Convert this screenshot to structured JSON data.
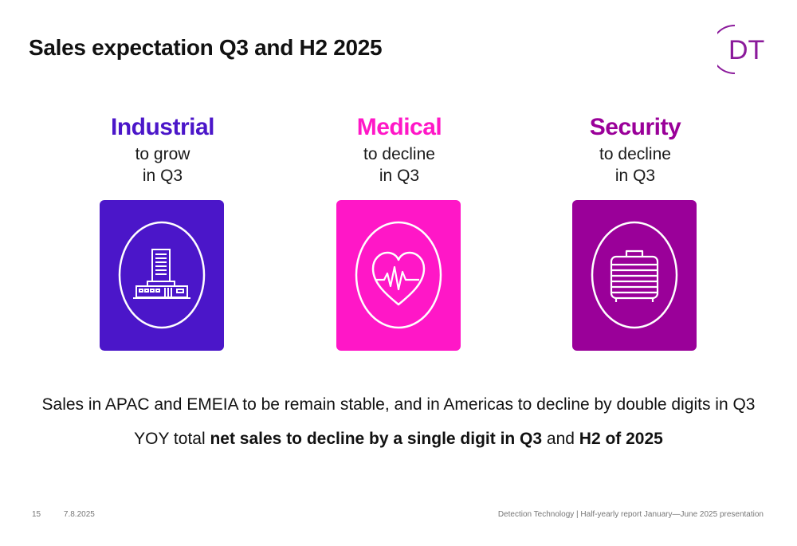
{
  "slide": {
    "title": "Sales expectation Q3 and H2 2025",
    "logo_text": "DT"
  },
  "segments": [
    {
      "name": "Industrial",
      "line1": "to grow",
      "line2": "in Q3",
      "color": "#4b16c9",
      "icon": "building-icon"
    },
    {
      "name": "Medical",
      "line1": "to decline",
      "line2": "in Q3",
      "color": "#ff17c7",
      "icon": "heart-pulse-icon"
    },
    {
      "name": "Security",
      "line1": "to decline",
      "line2": "in Q3",
      "color": "#9a0099",
      "icon": "suitcase-icon"
    }
  ],
  "statements": {
    "regional": "Sales in APAC and EMEIA to be remain stable, and in Americas to decline by double digits in Q3",
    "total_prefix": "YOY total ",
    "total_bold_1": "net sales to decline by a single digit in Q3",
    "total_mid": " and ",
    "total_bold_2": "H2 of 2025"
  },
  "footer": {
    "page_number": "15",
    "date": "7.8.2025",
    "source": "Detection Technology | Half-yearly report January—June 2025 presentation"
  },
  "colors": {
    "logo": "#8b1a9b",
    "industrial": "#4b16c9",
    "medical": "#ff17c7",
    "security": "#9a0099"
  }
}
